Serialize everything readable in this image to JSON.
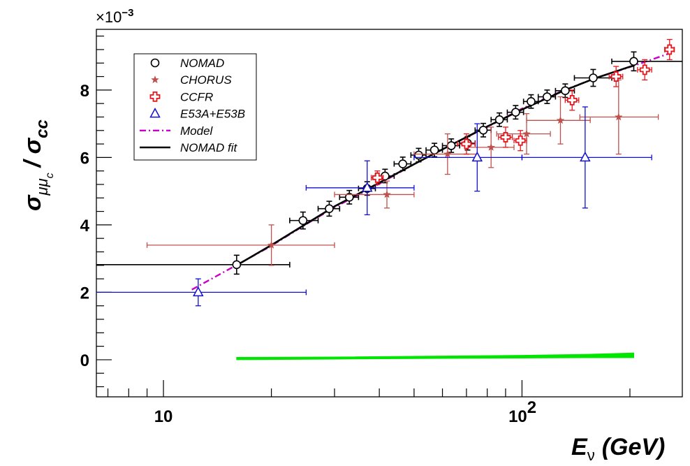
{
  "chart_data": {
    "type": "scatter",
    "x_scale": "log",
    "xlim": [
      6.5,
      280
    ],
    "ylim": [
      -0.0011,
      0.0098
    ],
    "xlabel": "E",
    "xlabel_sub": "ν",
    "xlabel_unit": "(GeV)",
    "ylabel_main": "σ",
    "ylabel_sub": "μμ",
    "ylabel_subsub": "c",
    "ylabel_den": "/ σ",
    "ylabel_den_sub": "cc",
    "y_multiplier": "×10",
    "y_multiplier_exp": "−3",
    "y_ticks": [
      0,
      0.002,
      0.004,
      0.006,
      0.008
    ],
    "y_tick_labels": [
      "0",
      "2",
      "4",
      "6",
      "8"
    ],
    "x_ticks": [
      10,
      100
    ],
    "x_tick_labels": [
      "10",
      "10",
      "2"
    ],
    "legend_position": "top-left",
    "legend": [
      {
        "label": "NOMAD",
        "marker": "circle",
        "color": "#000000"
      },
      {
        "label": "CHORUS",
        "marker": "star",
        "color": "#c0504d"
      },
      {
        "label": "CCFR",
        "marker": "open-cross",
        "color": "#e8141c"
      },
      {
        "label": "E53A+E53B",
        "marker": "triangle",
        "color": "#1010d0"
      },
      {
        "label": "Model",
        "marker": "dashdot-line",
        "color": "#c800c8"
      },
      {
        "label": "NOMAD fit",
        "marker": "solid-line",
        "color": "#000000"
      }
    ],
    "series": [
      {
        "name": "NOMAD",
        "color": "#000000",
        "marker": "circle",
        "points": [
          {
            "x": 16.0,
            "y": 0.00282,
            "xl": 6.5,
            "xh": 22.5,
            "ey": 0.00028
          },
          {
            "x": 24.5,
            "y": 0.00413,
            "xl": 22.5,
            "xh": 27.0,
            "ey": 0.00025
          },
          {
            "x": 29.0,
            "y": 0.00448,
            "xl": 27.0,
            "xh": 31.0,
            "ey": 0.00022
          },
          {
            "x": 33.0,
            "y": 0.00482,
            "xl": 31.0,
            "xh": 35.0,
            "ey": 0.0002
          },
          {
            "x": 37.0,
            "y": 0.00508,
            "xl": 35.0,
            "xh": 39.0,
            "ey": 0.0002
          },
          {
            "x": 41.5,
            "y": 0.00545,
            "xl": 39.0,
            "xh": 44.0,
            "ey": 0.0002
          },
          {
            "x": 46.5,
            "y": 0.00581,
            "xl": 44.0,
            "xh": 49.0,
            "ey": 0.0002
          },
          {
            "x": 51.5,
            "y": 0.00607,
            "xl": 49.0,
            "xh": 54.0,
            "ey": 0.0002
          },
          {
            "x": 57.0,
            "y": 0.00622,
            "xl": 54.0,
            "xh": 60.0,
            "ey": 0.0002
          },
          {
            "x": 63.5,
            "y": 0.00635,
            "xl": 60.0,
            "xh": 67.0,
            "ey": 0.0002
          },
          {
            "x": 70.5,
            "y": 0.00642,
            "xl": 67.0,
            "xh": 74.0,
            "ey": 0.0002
          },
          {
            "x": 78.0,
            "y": 0.00681,
            "xl": 74.0,
            "xh": 82.0,
            "ey": 0.0002
          },
          {
            "x": 86.5,
            "y": 0.00712,
            "xl": 82.0,
            "xh": 91.0,
            "ey": 0.0002
          },
          {
            "x": 96.0,
            "y": 0.00734,
            "xl": 91.0,
            "xh": 101.0,
            "ey": 0.0002
          },
          {
            "x": 106.0,
            "y": 0.00766,
            "xl": 101.0,
            "xh": 111.0,
            "ey": 0.0002
          },
          {
            "x": 117.5,
            "y": 0.0078,
            "xl": 111.0,
            "xh": 124.0,
            "ey": 0.0002
          },
          {
            "x": 132.0,
            "y": 0.00798,
            "xl": 124.0,
            "xh": 140.0,
            "ey": 0.0002
          },
          {
            "x": 158.0,
            "y": 0.00836,
            "xl": 140.0,
            "xh": 178.0,
            "ey": 0.00025
          },
          {
            "x": 205.0,
            "y": 0.00885,
            "xl": 178.0,
            "xh": 280.0,
            "ey": 0.00028
          }
        ]
      },
      {
        "name": "CHORUS",
        "color": "#c0504d",
        "marker": "star",
        "points": [
          {
            "x": 20.0,
            "y": 0.0034,
            "xl": 9.0,
            "xh": 30.0,
            "ey": 0.0006
          },
          {
            "x": 42.0,
            "y": 0.0049,
            "xl": 30.0,
            "xh": 50.0,
            "ey": 0.0004
          },
          {
            "x": 62.0,
            "y": 0.0061,
            "xl": 50.0,
            "xh": 75.0,
            "ey": 0.0006
          },
          {
            "x": 82.0,
            "y": 0.0063,
            "xl": 70.0,
            "xh": 95.0,
            "ey": 0.0006
          },
          {
            "x": 103.0,
            "y": 0.0067,
            "xl": 85.0,
            "xh": 120.0,
            "ey": 0.0006
          },
          {
            "x": 128.0,
            "y": 0.0071,
            "xl": 103.0,
            "xh": 155.0,
            "ey": 0.0007
          },
          {
            "x": 186.0,
            "y": 0.0072,
            "xl": 145.0,
            "xh": 240.0,
            "ey": 0.0011
          }
        ]
      },
      {
        "name": "CCFR",
        "color": "#e8141c",
        "marker": "open-cross",
        "points": [
          {
            "x": 39.5,
            "y": 0.0054,
            "xl": 38.0,
            "xh": 41.0,
            "ey": 0.0002
          },
          {
            "x": 70.0,
            "y": 0.0064,
            "xl": 66.0,
            "xh": 74.0,
            "ey": 0.0003
          },
          {
            "x": 90.0,
            "y": 0.0066,
            "xl": 86.0,
            "xh": 94.0,
            "ey": 0.0003
          },
          {
            "x": 99.0,
            "y": 0.0065,
            "xl": 95.0,
            "xh": 103.0,
            "ey": 0.0003
          },
          {
            "x": 138.0,
            "y": 0.0077,
            "xl": 132.0,
            "xh": 144.0,
            "ey": 0.0003
          },
          {
            "x": 183.0,
            "y": 0.0084,
            "xl": 175.0,
            "xh": 191.0,
            "ey": 0.0003
          },
          {
            "x": 220.0,
            "y": 0.0086,
            "xl": 210.0,
            "xh": 230.0,
            "ey": 0.0003
          },
          {
            "x": 258.0,
            "y": 0.0092,
            "xl": 250.0,
            "xh": 266.0,
            "ey": 0.0003
          }
        ]
      },
      {
        "name": "E53A+E53B",
        "color": "#1010d0",
        "marker": "triangle",
        "points": [
          {
            "x": 12.5,
            "y": 0.002,
            "xl": 6.5,
            "xh": 25.0,
            "ey": 0.0004
          },
          {
            "x": 37.0,
            "y": 0.0051,
            "xl": 25.0,
            "xh": 50.0,
            "ey": 0.0008
          },
          {
            "x": 75.0,
            "y": 0.006,
            "xl": 50.0,
            "xh": 100.0,
            "ey": 0.001
          },
          {
            "x": 150.0,
            "y": 0.006,
            "xl": 100.0,
            "xh": 230.0,
            "ey": 0.0015
          }
        ]
      }
    ],
    "model_curve": {
      "name": "Model",
      "color": "#c800c8",
      "x": [
        12.0,
        16.0,
        20.0,
        25.0,
        30.0,
        40.0,
        50.0,
        60.0,
        80.0,
        100.0,
        130.0,
        160.0,
        200.0,
        260.0
      ],
      "y": [
        0.00208,
        0.00281,
        0.00338,
        0.00402,
        0.00452,
        0.00522,
        0.0058,
        0.00625,
        0.0069,
        0.00745,
        0.00798,
        0.00835,
        0.00868,
        0.0091
      ]
    },
    "fit_curve": {
      "name": "NOMAD fit",
      "color": "#000000",
      "x": [
        16.0,
        20.0,
        30.0,
        40.0,
        50.0,
        60.0,
        80.0,
        100.0,
        130.0,
        160.0,
        205.0
      ],
      "y": [
        0.0028,
        0.0034,
        0.00455,
        0.00525,
        0.0058,
        0.00624,
        0.00692,
        0.00742,
        0.00797,
        0.00835,
        0.00873
      ]
    },
    "band": {
      "color": "#00e600",
      "x": [
        16.0,
        30.0,
        60.0,
        100.0,
        150.0,
        205.0
      ],
      "y_low": [
        0.0,
        2e-05,
        4e-05,
        5e-05,
        6e-05,
        6e-05
      ],
      "y_high": [
        7e-05,
        8e-05,
        0.00011,
        0.00013,
        0.00016,
        0.0002
      ]
    }
  }
}
